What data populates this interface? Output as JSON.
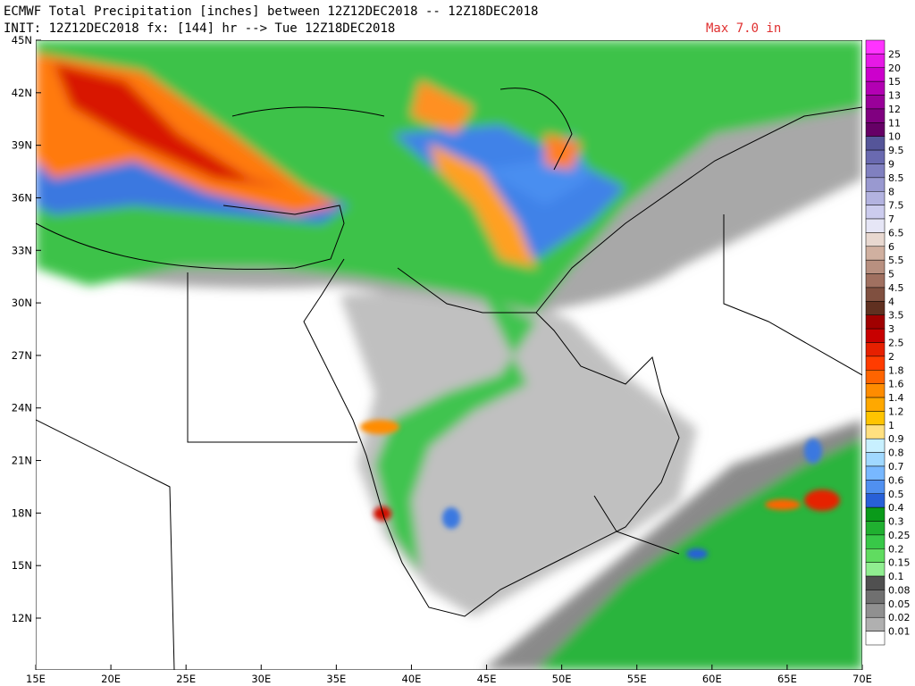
{
  "header": {
    "title": "ECMWF Total Precipitation [inches] between 12Z12DEC2018 -- 12Z18DEC2018",
    "subtitle": "INIT: 12Z12DEC2018 fx: [144] hr --> Tue 12Z18DEC2018",
    "max_note": "Max 7.0 in"
  },
  "map": {
    "lat_labels": [
      "45N",
      "42N",
      "39N",
      "36N",
      "33N",
      "30N",
      "27N",
      "24N",
      "21N",
      "18N",
      "15N",
      "12N"
    ],
    "lon_labels": [
      "15E",
      "20E",
      "25E",
      "30E",
      "35E",
      "40E",
      "45E",
      "50E",
      "55E",
      "60E",
      "65E",
      "70E"
    ]
  },
  "colorbar": {
    "labels": [
      "25",
      "20",
      "15",
      "13",
      "12",
      "11",
      "10",
      "9.5",
      "9",
      "8.5",
      "8",
      "7.5",
      "7",
      "6.5",
      "6",
      "5.5",
      "5",
      "4.5",
      "4",
      "3.5",
      "3",
      "2.5",
      "2",
      "1.8",
      "1.6",
      "1.4",
      "1.2",
      "1",
      "0.9",
      "0.8",
      "0.7",
      "0.6",
      "0.5",
      "0.4",
      "0.3",
      "0.25",
      "0.2",
      "0.15",
      "0.1",
      "0.08",
      "0.05",
      "0.02",
      "0.01"
    ],
    "colors": [
      "#ff33ff",
      "#e619e6",
      "#cc00cc",
      "#b300b3",
      "#990099",
      "#800080",
      "#660066",
      "#555599",
      "#6a6ab0",
      "#8080c0",
      "#9999d0",
      "#b3b3e0",
      "#ccccee",
      "#e6e6f6",
      "#e8d8d0",
      "#d0b0a0",
      "#b89080",
      "#a07060",
      "#805040",
      "#603020",
      "#a00000",
      "#c80000",
      "#e62000",
      "#ff3c00",
      "#ff6400",
      "#ff8c00",
      "#ffa800",
      "#ffc400",
      "#ffe080",
      "#c8f0ff",
      "#a0d8ff",
      "#78b8ff",
      "#5090f0",
      "#2860d8",
      "#0a9a1a",
      "#20b030",
      "#38c848",
      "#60dc60",
      "#90ee90",
      "#505050",
      "#707070",
      "#909090",
      "#b0b0b0",
      "#ffffff"
    ]
  }
}
